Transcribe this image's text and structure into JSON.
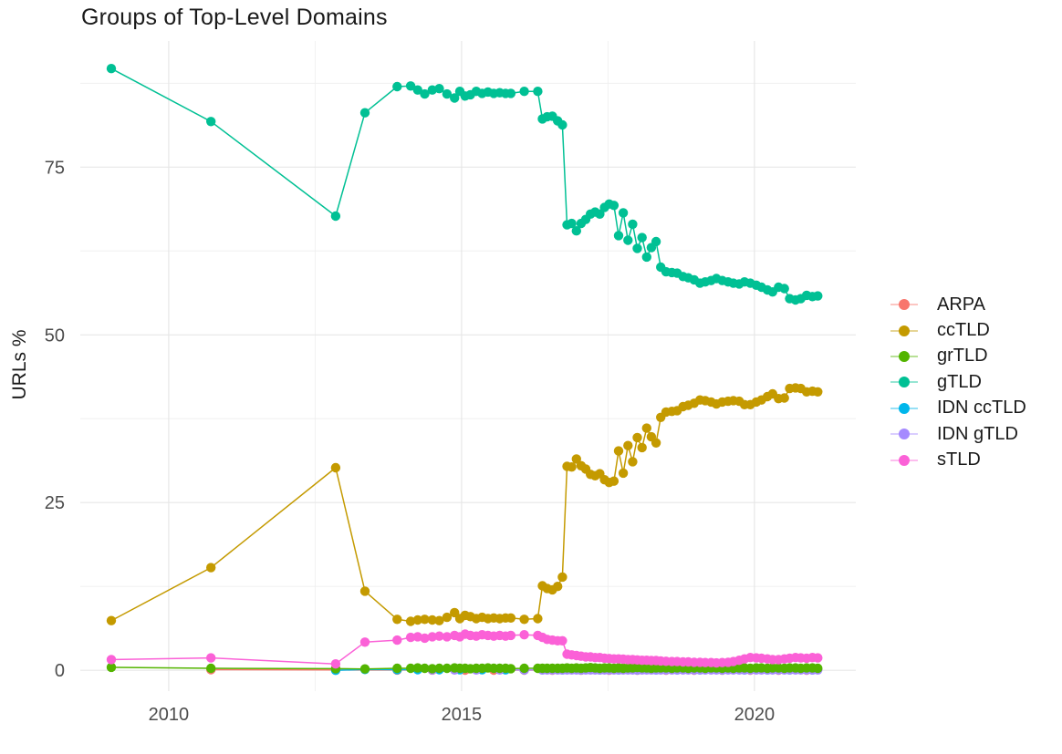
{
  "chart_data": {
    "type": "line",
    "title": "Groups of Top-Level Domains",
    "xlabel": "",
    "ylabel": "URLs %",
    "x_ticks": [
      2010,
      2015,
      2020
    ],
    "x_minor_ticks": [
      2012.5,
      2017.5
    ],
    "y_ticks": [
      0,
      25,
      50,
      75
    ],
    "y_minor_ticks": [
      12.5,
      37.5,
      62.5,
      87.5
    ],
    "xlim": [
      2008.49,
      2021.73
    ],
    "ylim": [
      -3.1,
      93.8
    ],
    "grid": true,
    "legend_position": "right",
    "x_main": [
      2009.02,
      2010.72,
      2012.85,
      2013.35,
      2013.9,
      2014.13,
      2014.25,
      2014.37,
      2014.5,
      2014.62,
      2014.75,
      2014.88,
      2014.97,
      2015.06,
      2015.15,
      2015.25,
      2015.35,
      2015.45,
      2015.55,
      2015.65,
      2015.75,
      2015.84,
      2016.07,
      2016.3,
      2016.38,
      2016.46,
      2016.55,
      2016.64,
      2016.72,
      2016.8,
      2016.88,
      2016.96,
      2017.04,
      2017.12,
      2017.2,
      2017.28,
      2017.36,
      2017.44,
      2017.52,
      2017.6,
      2017.68,
      2017.76,
      2017.84,
      2017.92,
      2018.0,
      2018.08,
      2018.16,
      2018.24,
      2018.32,
      2018.4,
      2018.49,
      2018.59,
      2018.68,
      2018.78,
      2018.87,
      2018.97,
      2019.07,
      2019.16,
      2019.26,
      2019.35,
      2019.45,
      2019.55,
      2019.64,
      2019.74,
      2019.83,
      2019.93,
      2020.03,
      2020.12,
      2020.22,
      2020.31,
      2020.41,
      2020.51,
      2020.6,
      2020.7,
      2020.79,
      2020.89,
      2020.99,
      2021.08
    ],
    "series": [
      {
        "name": "ARPA",
        "color": "#F8766D",
        "x": [
          2010.72,
          2012.85,
          2013.9,
          2014.5,
          2015.06,
          2015.55,
          2016.07,
          2016.55,
          2017.04,
          2017.52,
          2018.0,
          2018.49,
          2018.97,
          2019.45,
          2019.93,
          2020.41,
          2020.89
        ],
        "y": [
          0.1,
          0.05,
          0.04,
          0.04,
          0.03,
          0.03,
          0.03,
          0.03,
          0.02,
          0.02,
          0.02,
          0.02,
          0.02,
          0.02,
          0.02,
          0.02,
          0.02
        ]
      },
      {
        "name": "ccTLD",
        "color": "#C49A00",
        "x_ref": "x_main",
        "y": [
          7.4,
          15.3,
          30.2,
          11.8,
          7.6,
          7.3,
          7.5,
          7.6,
          7.5,
          7.4,
          7.9,
          8.6,
          7.7,
          8.2,
          8.0,
          7.7,
          7.9,
          7.7,
          7.8,
          7.7,
          7.8,
          7.8,
          7.6,
          7.7,
          12.6,
          12.2,
          12.0,
          12.5,
          13.9,
          30.4,
          30.3,
          31.5,
          30.5,
          30.0,
          29.2,
          29.0,
          29.3,
          28.4,
          28.0,
          28.2,
          32.7,
          29.4,
          33.5,
          31.1,
          34.7,
          33.2,
          36.1,
          34.8,
          33.9,
          37.7,
          38.5,
          38.6,
          38.7,
          39.3,
          39.5,
          39.8,
          40.3,
          40.2,
          40.0,
          39.7,
          40.0,
          40.1,
          40.2,
          40.1,
          39.6,
          39.6,
          40.0,
          40.3,
          40.8,
          41.2,
          40.5,
          40.6,
          42.0,
          42.1,
          42.0,
          41.5,
          41.6,
          41.5
        ]
      },
      {
        "name": "grTLD",
        "color": "#53B400",
        "x_ref": "x_main",
        "y": [
          0.45,
          0.3,
          0.25,
          0.2,
          0.3,
          0.3,
          0.35,
          0.3,
          0.25,
          0.3,
          0.3,
          0.35,
          0.3,
          0.3,
          0.25,
          0.3,
          0.3,
          0.35,
          0.3,
          0.3,
          0.3,
          0.25,
          0.3,
          0.3,
          0.3,
          0.3,
          0.3,
          0.3,
          0.3,
          0.35,
          0.3,
          0.35,
          0.3,
          0.35,
          0.4,
          0.35,
          0.3,
          0.35,
          0.35,
          0.3,
          0.35,
          0.3,
          0.35,
          0.35,
          0.4,
          0.35,
          0.35,
          0.3,
          0.35,
          0.35,
          0.35,
          0.3,
          0.35,
          0.35,
          0.3,
          0.35,
          0.35,
          0.3,
          0.35,
          0.35,
          0.3,
          0.35,
          0.3,
          0.35,
          0.35,
          0.3,
          0.35,
          0.35,
          0.3,
          0.35,
          0.35,
          0.3,
          0.35,
          0.35,
          0.3,
          0.35,
          0.35,
          0.3
        ]
      },
      {
        "name": "gTLD",
        "color": "#00C094",
        "x_ref": "x_main",
        "y": [
          89.7,
          81.8,
          67.7,
          83.1,
          87.0,
          87.1,
          86.5,
          85.9,
          86.5,
          86.7,
          85.9,
          85.3,
          86.3,
          85.6,
          85.8,
          86.3,
          86.0,
          86.2,
          86.0,
          86.1,
          86.0,
          86.0,
          86.3,
          86.3,
          82.2,
          82.5,
          82.6,
          81.9,
          81.3,
          66.4,
          66.6,
          65.5,
          66.6,
          67.2,
          68.0,
          68.3,
          68.0,
          69.0,
          69.5,
          69.3,
          64.8,
          68.2,
          64.1,
          66.5,
          62.9,
          64.5,
          61.6,
          63.0,
          63.9,
          60.1,
          59.4,
          59.3,
          59.2,
          58.7,
          58.5,
          58.2,
          57.7,
          57.9,
          58.1,
          58.4,
          58.1,
          57.9,
          57.7,
          57.6,
          57.9,
          57.7,
          57.4,
          57.1,
          56.7,
          56.4,
          57.1,
          56.9,
          55.4,
          55.2,
          55.4,
          55.9,
          55.7,
          55.8
        ]
      },
      {
        "name": "IDN ccTLD",
        "color": "#00B6EB",
        "x": [
          2012.85,
          2013.35,
          2013.9,
          2014.25,
          2014.62,
          2014.97,
          2015.35,
          2015.75,
          2016.07,
          2016.38,
          2016.72,
          2017.04,
          2017.36,
          2017.68,
          2018.0,
          2018.32,
          2018.68,
          2019.07,
          2019.45,
          2019.83,
          2020.22,
          2020.6,
          2020.99
        ],
        "y": [
          0.0,
          0.12,
          0.1,
          0.1,
          0.09,
          0.08,
          0.08,
          0.07,
          0.07,
          0.06,
          0.05,
          0.05,
          0.05,
          0.05,
          0.05,
          0.05,
          0.05,
          0.05,
          0.05,
          0.05,
          0.05,
          0.05,
          0.05
        ]
      },
      {
        "name": "IDN gTLD",
        "color": "#A58AFF",
        "x": [
          2014.5,
          2014.88,
          2015.25,
          2015.65,
          2016.07,
          2016.38,
          2016.46,
          2016.55,
          2016.64,
          2016.72,
          2016.8,
          2016.88,
          2016.96,
          2017.04,
          2017.12,
          2017.2,
          2017.28,
          2017.36,
          2017.44,
          2017.52,
          2017.6,
          2017.68,
          2017.76,
          2017.84,
          2017.92,
          2018.0,
          2018.08,
          2018.16,
          2018.24,
          2018.32,
          2018.4,
          2018.49,
          2018.59,
          2018.68,
          2018.78,
          2018.87,
          2018.97,
          2019.07,
          2019.16,
          2019.26,
          2019.35,
          2019.45,
          2019.55,
          2019.64,
          2019.74,
          2019.83,
          2019.93,
          2020.03,
          2020.12,
          2020.22,
          2020.31,
          2020.41,
          2020.51,
          2020.6,
          2020.7,
          2020.79,
          2020.89,
          2020.99,
          2021.08
        ],
        "y_const": 0.05
      },
      {
        "name": "sTLD",
        "color": "#FB61D7",
        "x_ref": "x_main",
        "y": [
          1.6,
          1.85,
          0.95,
          4.2,
          4.5,
          4.9,
          5.0,
          4.8,
          5.0,
          5.1,
          5.0,
          5.2,
          5.0,
          5.4,
          5.2,
          5.1,
          5.3,
          5.2,
          5.1,
          5.2,
          5.1,
          5.2,
          5.3,
          5.2,
          4.9,
          4.6,
          4.5,
          4.4,
          4.4,
          2.4,
          2.3,
          2.2,
          2.1,
          2.0,
          2.0,
          1.9,
          1.9,
          1.8,
          1.75,
          1.7,
          1.7,
          1.65,
          1.6,
          1.6,
          1.55,
          1.5,
          1.5,
          1.45,
          1.45,
          1.4,
          1.35,
          1.3,
          1.3,
          1.25,
          1.25,
          1.2,
          1.2,
          1.15,
          1.15,
          1.1,
          1.15,
          1.2,
          1.3,
          1.5,
          1.7,
          1.9,
          1.85,
          1.8,
          1.7,
          1.6,
          1.6,
          1.7,
          1.8,
          1.9,
          1.85,
          1.8,
          1.9,
          1.85
        ]
      }
    ],
    "draw_order": [
      0,
      4,
      5,
      2,
      1,
      3,
      6
    ]
  }
}
